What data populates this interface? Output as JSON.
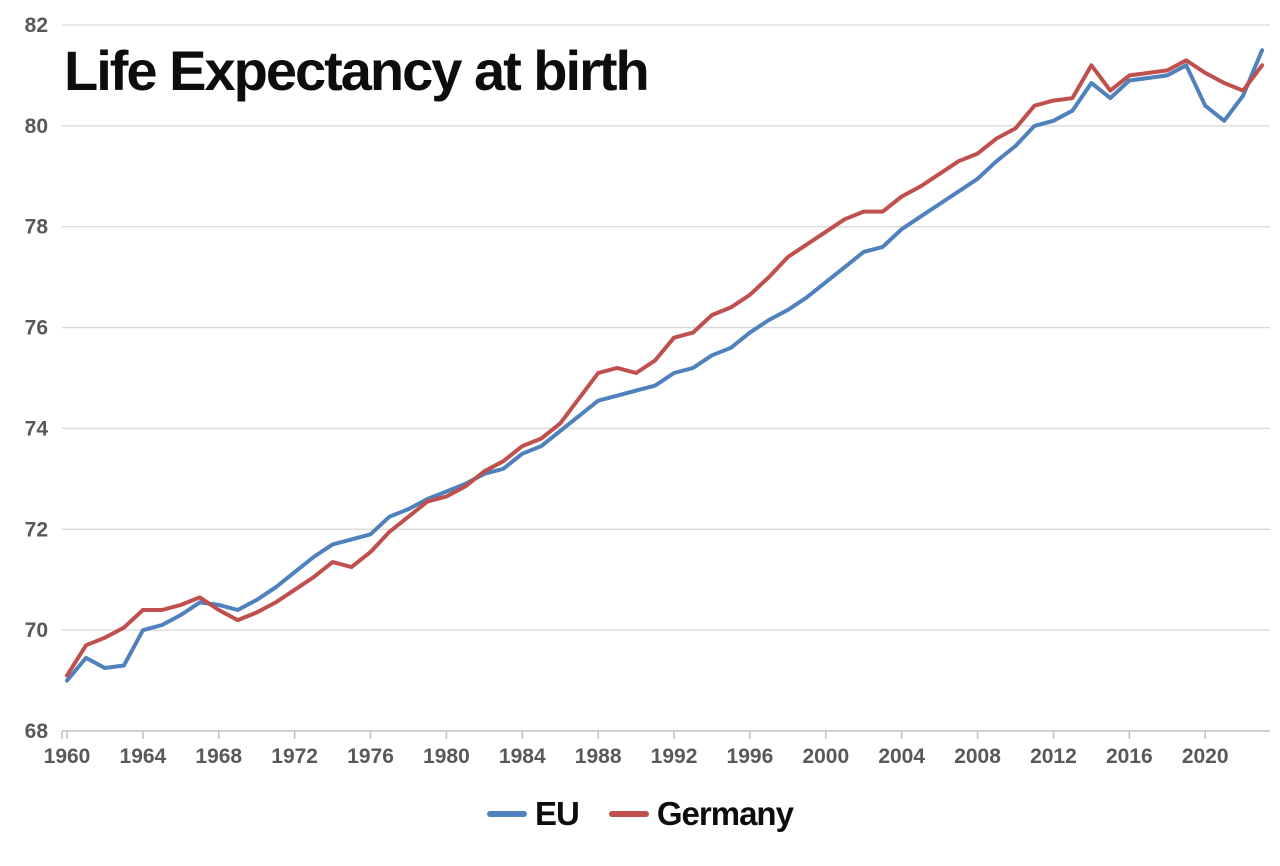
{
  "title": "Life Expectancy at birth",
  "legend": [
    {
      "label": "EU",
      "color": "#4f81bd"
    },
    {
      "label": "Germany",
      "color": "#c0504d"
    }
  ],
  "axis_style": {
    "label_color": "#595959",
    "gridline_color": "#d9d9d9",
    "axis_line_color": "#bfbfbf"
  },
  "chart_data": {
    "type": "line",
    "title": "Life Expectancy at birth",
    "xlabel": "",
    "ylabel": "",
    "grid": true,
    "legend_position": "bottom",
    "ylim": [
      68,
      82
    ],
    "yticks": [
      82,
      80,
      78,
      76,
      74,
      72,
      70,
      68
    ],
    "xticks": [
      1960,
      1964,
      1968,
      1972,
      1976,
      1980,
      1984,
      1988,
      1992,
      1996,
      2000,
      2004,
      2008,
      2012,
      2016,
      2020
    ],
    "xlim": [
      1960,
      2023.5
    ],
    "x": [
      1960,
      1961,
      1962,
      1963,
      1964,
      1965,
      1966,
      1967,
      1968,
      1969,
      1970,
      1971,
      1972,
      1973,
      1974,
      1975,
      1976,
      1977,
      1978,
      1979,
      1980,
      1981,
      1982,
      1983,
      1984,
      1985,
      1986,
      1987,
      1988,
      1989,
      1990,
      1991,
      1992,
      1993,
      1994,
      1995,
      1996,
      1997,
      1998,
      1999,
      2000,
      2001,
      2002,
      2003,
      2004,
      2005,
      2006,
      2007,
      2008,
      2009,
      2010,
      2011,
      2012,
      2013,
      2014,
      2015,
      2016,
      2017,
      2018,
      2019,
      2020,
      2021,
      2022,
      2023
    ],
    "series": [
      {
        "name": "EU",
        "color": "#4f81bd",
        "values": [
          69.0,
          69.45,
          69.25,
          69.3,
          70.0,
          70.1,
          70.3,
          70.55,
          70.5,
          70.4,
          70.6,
          70.85,
          71.15,
          71.45,
          71.7,
          71.8,
          71.9,
          72.25,
          72.4,
          72.6,
          72.75,
          72.9,
          73.1,
          73.2,
          73.5,
          73.65,
          73.95,
          74.25,
          74.55,
          74.65,
          74.75,
          74.85,
          75.1,
          75.2,
          75.45,
          75.6,
          75.9,
          76.15,
          76.35,
          76.6,
          76.9,
          77.2,
          77.5,
          77.6,
          77.95,
          78.2,
          78.45,
          78.7,
          78.95,
          79.3,
          79.6,
          80.0,
          80.1,
          80.3,
          80.85,
          80.55,
          80.9,
          80.95,
          81.0,
          81.2,
          80.4,
          80.1,
          80.6,
          81.5
        ]
      },
      {
        "name": "Germany",
        "color": "#c0504d",
        "values": [
          69.1,
          69.7,
          69.85,
          70.05,
          70.4,
          70.4,
          70.5,
          70.65,
          70.4,
          70.2,
          70.35,
          70.55,
          70.8,
          71.05,
          71.35,
          71.25,
          71.55,
          71.95,
          72.25,
          72.55,
          72.65,
          72.85,
          73.15,
          73.35,
          73.65,
          73.8,
          74.1,
          74.6,
          75.1,
          75.2,
          75.1,
          75.35,
          75.8,
          75.9,
          76.25,
          76.4,
          76.65,
          77.0,
          77.4,
          77.65,
          77.9,
          78.15,
          78.3,
          78.3,
          78.6,
          78.8,
          79.05,
          79.3,
          79.45,
          79.75,
          79.95,
          80.4,
          80.5,
          80.55,
          81.2,
          80.7,
          81.0,
          81.05,
          81.1,
          81.3,
          81.05,
          80.85,
          80.7,
          81.2
        ]
      }
    ]
  }
}
